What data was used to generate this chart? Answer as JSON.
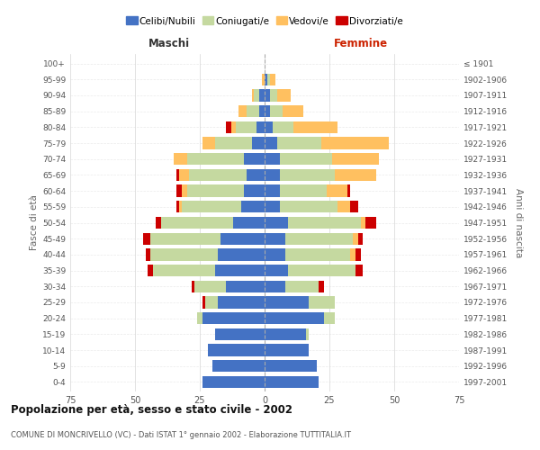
{
  "age_groups": [
    "0-4",
    "5-9",
    "10-14",
    "15-19",
    "20-24",
    "25-29",
    "30-34",
    "35-39",
    "40-44",
    "45-49",
    "50-54",
    "55-59",
    "60-64",
    "65-69",
    "70-74",
    "75-79",
    "80-84",
    "85-89",
    "90-94",
    "95-99",
    "100+"
  ],
  "birth_years": [
    "1997-2001",
    "1992-1996",
    "1987-1991",
    "1982-1986",
    "1977-1981",
    "1972-1976",
    "1967-1971",
    "1962-1966",
    "1957-1961",
    "1952-1956",
    "1947-1951",
    "1942-1946",
    "1937-1941",
    "1932-1936",
    "1927-1931",
    "1922-1926",
    "1917-1921",
    "1912-1916",
    "1907-1911",
    "1902-1906",
    "≤ 1901"
  ],
  "male": {
    "celibe": [
      24,
      20,
      22,
      19,
      24,
      18,
      15,
      19,
      18,
      17,
      12,
      9,
      8,
      7,
      8,
      5,
      3,
      2,
      2,
      0,
      0
    ],
    "coniugato": [
      0,
      0,
      0,
      0,
      2,
      5,
      12,
      24,
      26,
      27,
      28,
      23,
      22,
      22,
      22,
      14,
      8,
      5,
      2,
      0,
      0
    ],
    "vedovo": [
      0,
      0,
      0,
      0,
      0,
      0,
      0,
      0,
      0,
      0,
      0,
      1,
      2,
      4,
      5,
      5,
      2,
      3,
      1,
      1,
      0
    ],
    "divorziato": [
      0,
      0,
      0,
      0,
      0,
      1,
      1,
      2,
      2,
      3,
      2,
      1,
      2,
      1,
      0,
      0,
      2,
      0,
      0,
      0,
      0
    ]
  },
  "female": {
    "nubile": [
      21,
      20,
      17,
      16,
      23,
      17,
      8,
      9,
      8,
      8,
      9,
      6,
      6,
      6,
      6,
      5,
      3,
      2,
      2,
      1,
      0
    ],
    "coniugata": [
      0,
      0,
      0,
      1,
      4,
      10,
      13,
      26,
      25,
      26,
      28,
      22,
      18,
      21,
      20,
      17,
      8,
      5,
      3,
      1,
      0
    ],
    "vedova": [
      0,
      0,
      0,
      0,
      0,
      0,
      0,
      0,
      2,
      2,
      2,
      5,
      8,
      16,
      18,
      26,
      17,
      8,
      5,
      2,
      0
    ],
    "divorziata": [
      0,
      0,
      0,
      0,
      0,
      0,
      2,
      3,
      2,
      2,
      4,
      3,
      1,
      0,
      0,
      0,
      0,
      0,
      0,
      0,
      0
    ]
  },
  "colors": {
    "celibe": "#4472c4",
    "coniugato": "#c5d9a0",
    "vedovo": "#ffc060",
    "divorziato": "#cc0000"
  },
  "title": "Popolazione per età, sesso e stato civile - 2002",
  "subtitle": "COMUNE DI MONCRIVELLO (VC) - Dati ISTAT 1° gennaio 2002 - Elaborazione TUTTITALIA.IT",
  "xlabel_left": "Maschi",
  "xlabel_right": "Femmine",
  "ylabel_left": "Fasce di età",
  "ylabel_right": "Anni di nascita",
  "xlim": 75,
  "background_color": "#ffffff",
  "grid_color": "#cccccc",
  "legend_labels": [
    "Celibi/Nubili",
    "Coniugati/e",
    "Vedovi/e",
    "Divorziati/e"
  ]
}
